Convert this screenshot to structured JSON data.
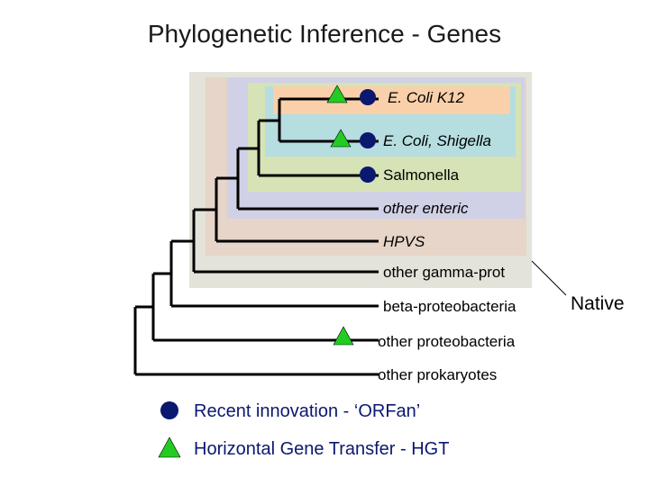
{
  "title": "Phylogenetic Inference - Genes",
  "colors": {
    "region_outer": "#e3e3da",
    "region_hpvs": "#e6d5c8",
    "region_enteric": "#d0d0e6",
    "region_salmonella": "#d6e3b6",
    "region_shigella": "#b6dde0",
    "region_k12": "#f9d0aa",
    "orfan_marker": "#0b1870",
    "hgt_marker": "#22cc22",
    "legend_orfan_text": "#0b1870",
    "legend_hgt_text": "#0b1870"
  },
  "leaves": [
    {
      "label": "E. Coli K12",
      "markers": [
        "hgt-triangle",
        "orfan-circle"
      ]
    },
    {
      "label": "E. Coli, Shigella",
      "markers": [
        "hgt-triangle",
        "orfan-circle"
      ]
    },
    {
      "label": "Salmonella",
      "markers": [
        "orfan-circle"
      ]
    },
    {
      "label": "other enteric",
      "markers": []
    },
    {
      "label": "HPVS",
      "markers": []
    },
    {
      "label": "other gamma-prot",
      "markers": []
    },
    {
      "label": "beta-proteobacteria",
      "markers": []
    },
    {
      "label": "other proteobacteria",
      "markers": [
        "hgt-triangle"
      ]
    },
    {
      "label": "other prokaryotes",
      "markers": []
    }
  ],
  "callout": "Native",
  "legend": {
    "orfan": "Recent innovation - ‘ORFan’",
    "hgt": "Horizontal Gene Transfer - HGT"
  }
}
